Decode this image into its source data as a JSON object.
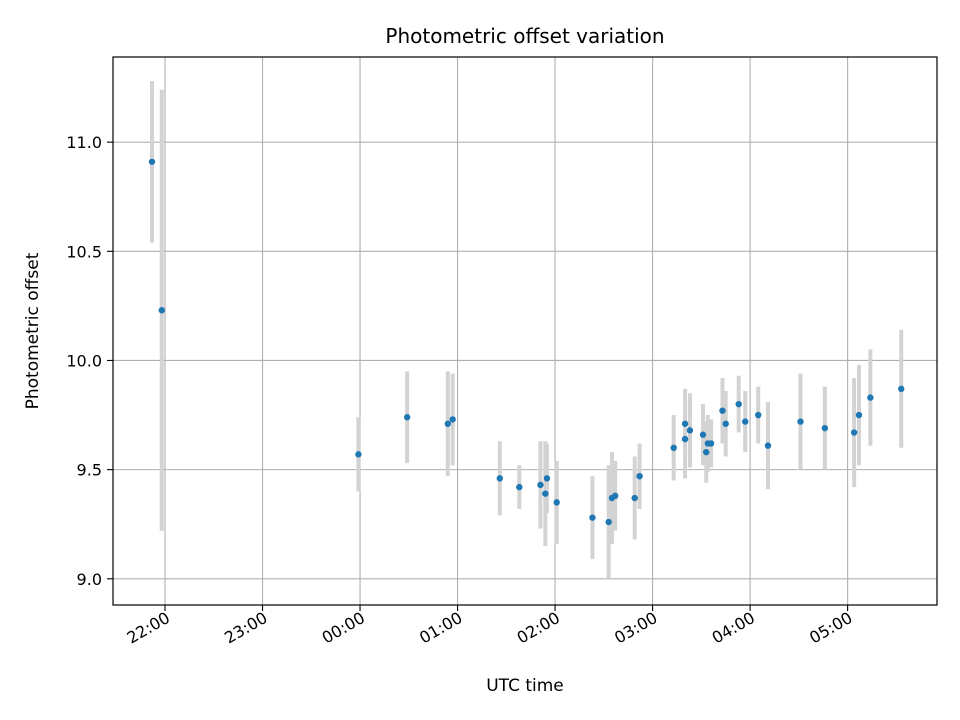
{
  "chart_data": {
    "type": "scatter",
    "title": "Photometric offset variation",
    "xlabel": "UTC time",
    "ylabel": "Photometric offset",
    "x_ticks": [
      "22:00",
      "23:00",
      "00:00",
      "01:00",
      "02:00",
      "03:00",
      "04:00",
      "05:00"
    ],
    "y_ticks": [
      "9.0",
      "9.5",
      "10.0",
      "10.5",
      "11.0"
    ],
    "xlim": [
      "21:28",
      "05:55"
    ],
    "ylim": [
      8.88,
      11.39
    ],
    "grid": true,
    "colors": {
      "points": "#1f77b4",
      "errorbars": "#d3d3d3",
      "grid": "#b0b0b0"
    },
    "points": [
      {
        "t": "21:52",
        "y": 10.91,
        "err": 0.37
      },
      {
        "t": "21:58",
        "y": 10.23,
        "err": 1.01
      },
      {
        "t": "23:59",
        "y": 9.57,
        "err": 0.17
      },
      {
        "t": "00:29",
        "y": 9.74,
        "err": 0.21
      },
      {
        "t": "00:54",
        "y": 9.71,
        "err": 0.24
      },
      {
        "t": "00:57",
        "y": 9.73,
        "err": 0.21
      },
      {
        "t": "01:26",
        "y": 9.46,
        "err": 0.17
      },
      {
        "t": "01:38",
        "y": 9.42,
        "err": 0.1
      },
      {
        "t": "01:51",
        "y": 9.43,
        "err": 0.2
      },
      {
        "t": "01:54",
        "y": 9.39,
        "err": 0.24
      },
      {
        "t": "01:55",
        "y": 9.46,
        "err": 0.16
      },
      {
        "t": "02:01",
        "y": 9.35,
        "err": 0.19
      },
      {
        "t": "02:23",
        "y": 9.28,
        "err": 0.19
      },
      {
        "t": "02:33",
        "y": 9.26,
        "err": 0.26
      },
      {
        "t": "02:35",
        "y": 9.37,
        "err": 0.21
      },
      {
        "t": "02:37",
        "y": 9.38,
        "err": 0.16
      },
      {
        "t": "02:49",
        "y": 9.37,
        "err": 0.19
      },
      {
        "t": "02:52",
        "y": 9.47,
        "err": 0.15
      },
      {
        "t": "03:13",
        "y": 9.6,
        "err": 0.15
      },
      {
        "t": "03:20",
        "y": 9.71,
        "err": 0.16
      },
      {
        "t": "03:20",
        "y": 9.64,
        "err": 0.18
      },
      {
        "t": "03:23",
        "y": 9.68,
        "err": 0.17
      },
      {
        "t": "03:31",
        "y": 9.66,
        "err": 0.14
      },
      {
        "t": "03:33",
        "y": 9.58,
        "err": 0.14
      },
      {
        "t": "03:34",
        "y": 9.62,
        "err": 0.13
      },
      {
        "t": "03:36",
        "y": 9.62,
        "err": 0.11
      },
      {
        "t": "03:43",
        "y": 9.77,
        "err": 0.15
      },
      {
        "t": "03:45",
        "y": 9.71,
        "err": 0.15
      },
      {
        "t": "03:53",
        "y": 9.8,
        "err": 0.13
      },
      {
        "t": "03:57",
        "y": 9.72,
        "err": 0.14
      },
      {
        "t": "04:05",
        "y": 9.75,
        "err": 0.13
      },
      {
        "t": "04:11",
        "y": 9.61,
        "err": 0.2
      },
      {
        "t": "04:31",
        "y": 9.72,
        "err": 0.22
      },
      {
        "t": "04:46",
        "y": 9.69,
        "err": 0.19
      },
      {
        "t": "05:04",
        "y": 9.67,
        "err": 0.25
      },
      {
        "t": "05:07",
        "y": 9.75,
        "err": 0.23
      },
      {
        "t": "05:14",
        "y": 9.83,
        "err": 0.22
      },
      {
        "t": "05:33",
        "y": 9.87,
        "err": 0.27
      }
    ]
  }
}
